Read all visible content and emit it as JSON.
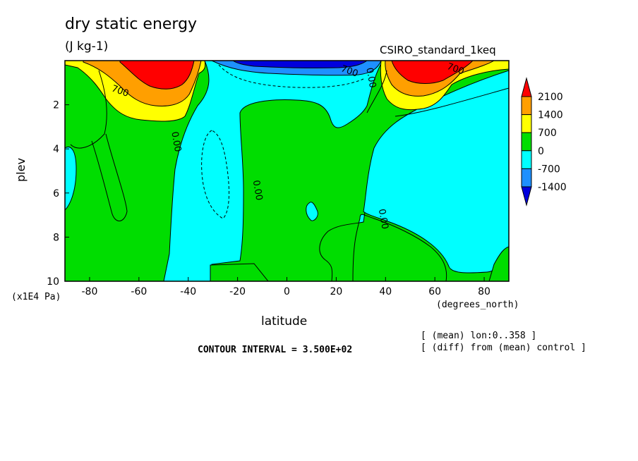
{
  "header": {
    "title": "dry static energy",
    "units": "(J kg-1)",
    "model": "CSIRO_standard_1keq"
  },
  "footer": {
    "contour_interval": "CONTOUR INTERVAL = 3.500E+02",
    "note_mean": "[ (mean) lon:0..358 ]",
    "note_diff": "[ (diff) from (mean) control ]"
  },
  "chart_data": {
    "type": "contour",
    "title": "dry static energy",
    "units": "(J kg-1)",
    "xlabel": "latitude",
    "x_unit": "(degrees_north)",
    "ylabel": "plev",
    "y_unit": "(x1E4 Pa)",
    "xlim": [
      -90,
      90
    ],
    "ylim": [
      10,
      0
    ],
    "x_ticks": [
      "-80",
      "-60",
      "-40",
      "-20",
      "0",
      "20",
      "40",
      "60",
      "80"
    ],
    "y_ticks": [
      "2",
      "4",
      "6",
      "8",
      "10"
    ],
    "contour_interval": 350,
    "colorbar": {
      "levels": [
        "2100",
        "1400",
        "700",
        "0",
        "-700",
        "-1400"
      ],
      "colors": [
        "#ff0000",
        "#ff9f00",
        "#ffff00",
        "#00dd00",
        "#00ffff",
        "#1e90ff",
        "#0000dd"
      ]
    },
    "contour_labels": [
      {
        "text": "700",
        "x": -68,
        "y": 1.5
      },
      {
        "text": "0.00",
        "x": -46,
        "y": 3.7
      },
      {
        "text": "0.00",
        "x": -13,
        "y": 5.9
      },
      {
        "text": "700",
        "x": 25,
        "y": 0.6
      },
      {
        "text": "0.00",
        "x": 33,
        "y": 0.8
      },
      {
        "text": "0.00",
        "x": 38,
        "y": 7.2
      },
      {
        "text": "700",
        "x": 68,
        "y": 0.5
      }
    ]
  },
  "colors": {
    "red": "#ff0000",
    "orange": "#ff9f00",
    "yellow": "#ffff00",
    "green": "#00dd00",
    "cyan": "#00ffff",
    "blue": "#1e90ff",
    "darkblue": "#0000dd"
  }
}
